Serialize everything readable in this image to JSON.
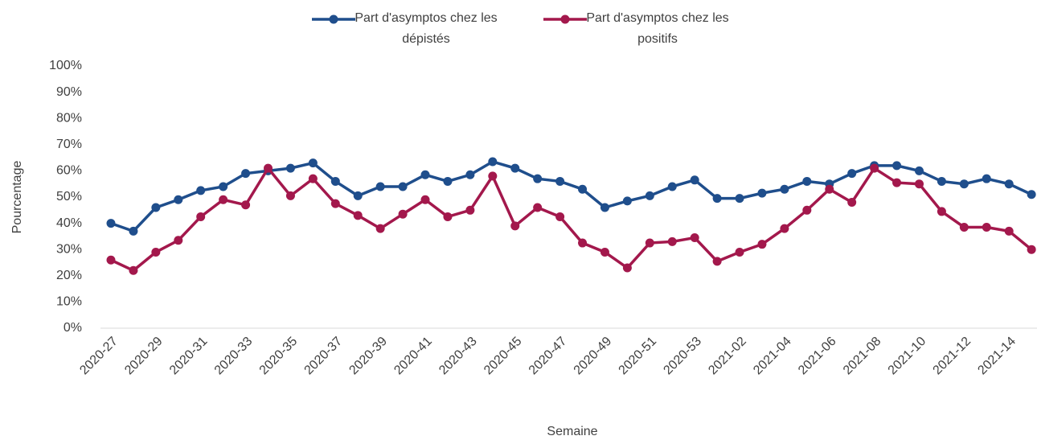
{
  "chart_data": {
    "type": "line",
    "x_label": "Semaine",
    "y_label": "Pourcentage",
    "categories": [
      "2020-27",
      null,
      "2020-29",
      null,
      "2020-31",
      null,
      "2020-33",
      null,
      "2020-35",
      null,
      "2020-37",
      null,
      "2020-39",
      null,
      "2020-41",
      null,
      "2020-43",
      null,
      "2020-45",
      null,
      "2020-47",
      null,
      "2020-49",
      null,
      "2020-51",
      null,
      "2020-53",
      null,
      "2021-02",
      null,
      "2021-04",
      null,
      "2021-06",
      null,
      "2021-08",
      null,
      "2021-10",
      null,
      "2021-12",
      null,
      "2021-14",
      null
    ],
    "series": [
      {
        "name": "Part d'asymptos chez les dépistés",
        "color": "#1f4e8c",
        "values": [
          40,
          37,
          46,
          49,
          52.5,
          54,
          59,
          60,
          61,
          63,
          56,
          50.5,
          54,
          54,
          58.5,
          56,
          58.5,
          63.5,
          61,
          57,
          56,
          53,
          46,
          48.5,
          50.5,
          54,
          56.5,
          49.5,
          49.5,
          51.5,
          53,
          56,
          55,
          59,
          62,
          62,
          60,
          56,
          55,
          57,
          55,
          51
        ]
      },
      {
        "name": "Part d'asymptos chez les positifs",
        "color": "#a3184c",
        "values": [
          26,
          22,
          29,
          33.5,
          42.5,
          49,
          47,
          61,
          50.5,
          57,
          47.5,
          43,
          38,
          43.5,
          49,
          42.5,
          45,
          58,
          39,
          46,
          42.5,
          32.5,
          29,
          23,
          32.5,
          33,
          34.5,
          25.5,
          29,
          32,
          38,
          45,
          53,
          48,
          61,
          55.5,
          55,
          44.5,
          38.5,
          38.5,
          37,
          30
        ]
      }
    ],
    "ylim": [
      0,
      100
    ],
    "yticks": [
      {
        "value": 0,
        "label": "0%"
      },
      {
        "value": 10,
        "label": "10%"
      },
      {
        "value": 20,
        "label": "20%"
      },
      {
        "value": 30,
        "label": "30%"
      },
      {
        "value": 40,
        "label": "40%"
      },
      {
        "value": 50,
        "label": "50%"
      },
      {
        "value": 60,
        "label": "60%"
      },
      {
        "value": 70,
        "label": "70%"
      },
      {
        "value": 80,
        "label": "80%"
      },
      {
        "value": 90,
        "label": "90%"
      },
      {
        "value": 100,
        "label": "100%"
      }
    ],
    "grid": false
  }
}
